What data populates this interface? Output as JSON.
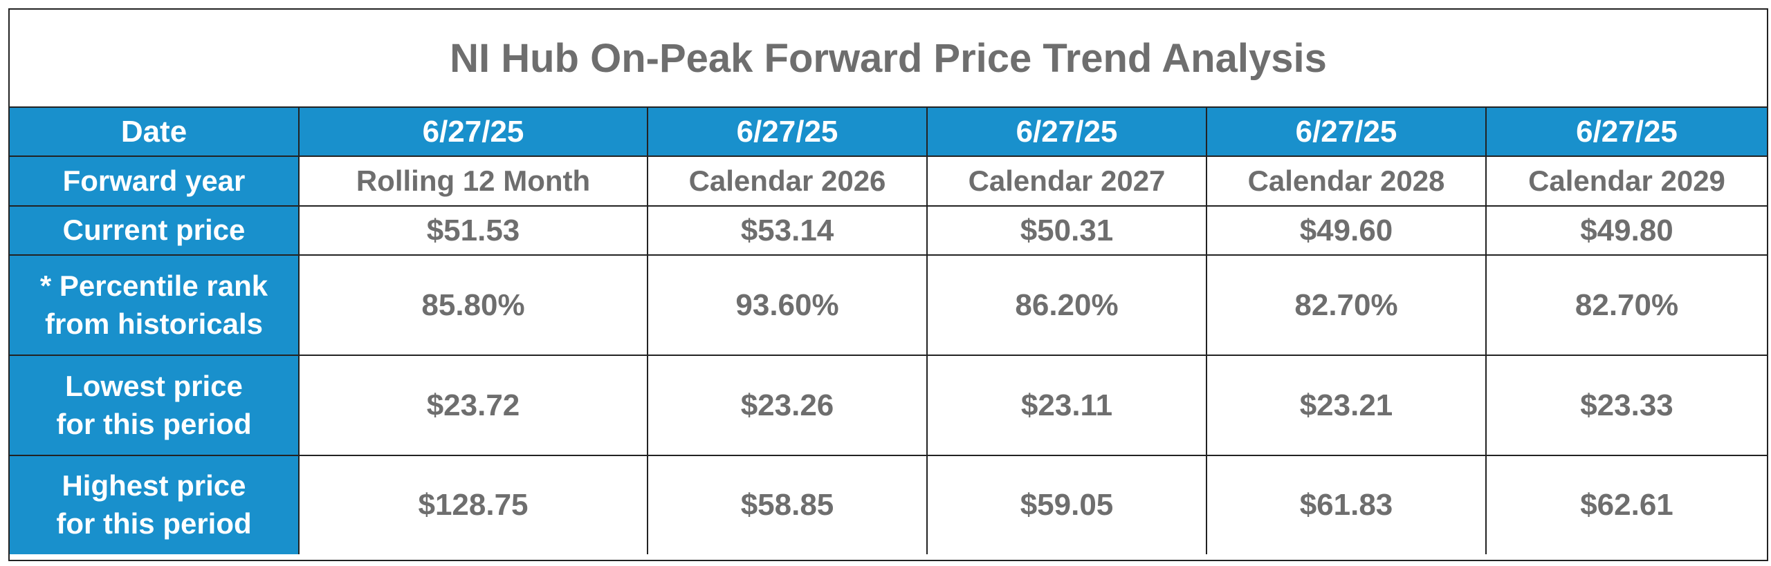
{
  "title": "NI Hub On-Peak Forward Price Trend Analysis",
  "colors": {
    "header_bg": "#1990cc",
    "header_text": "#ffffff",
    "value_text": "#6e6e6e",
    "border": "#222222"
  },
  "table": {
    "date": {
      "label": "Date",
      "values": [
        "6/27/25",
        "6/27/25",
        "6/27/25",
        "6/27/25",
        "6/27/25"
      ]
    },
    "forward_year": {
      "label": "Forward year",
      "values": [
        "Rolling 12 Month",
        "Calendar 2026",
        "Calendar 2027",
        "Calendar 2028",
        "Calendar 2029"
      ]
    },
    "current_price": {
      "label": "Current price",
      "values": [
        "$51.53",
        "$53.14",
        "$50.31",
        "$49.60",
        "$49.80"
      ]
    },
    "percentile_rank": {
      "label_line1": "* Percentile rank",
      "label_line2": "from historicals",
      "values": [
        "85.80%",
        "93.60%",
        "86.20%",
        "82.70%",
        "82.70%"
      ]
    },
    "lowest_price": {
      "label_line1": "Lowest price",
      "label_line2": "for this period",
      "values": [
        "$23.72",
        "$23.26",
        "$23.11",
        "$23.21",
        "$23.33"
      ]
    },
    "highest_price": {
      "label_line1": "Highest price",
      "label_line2": "for this period",
      "values": [
        "$128.75",
        "$58.85",
        "$59.05",
        "$61.83",
        "$62.61"
      ]
    }
  }
}
